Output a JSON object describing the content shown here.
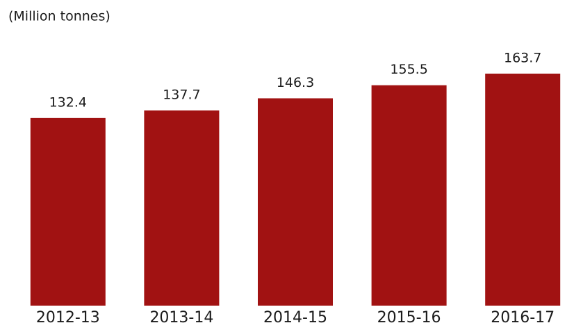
{
  "chart_data": {
    "type": "bar",
    "subtitle": "(Million tonnes)",
    "categories": [
      "2012-13",
      "2013-14",
      "2014-15",
      "2015-16",
      "2016-17"
    ],
    "values": [
      132.4,
      137.7,
      146.3,
      155.5,
      163.7
    ],
    "color": "#a11212"
  }
}
